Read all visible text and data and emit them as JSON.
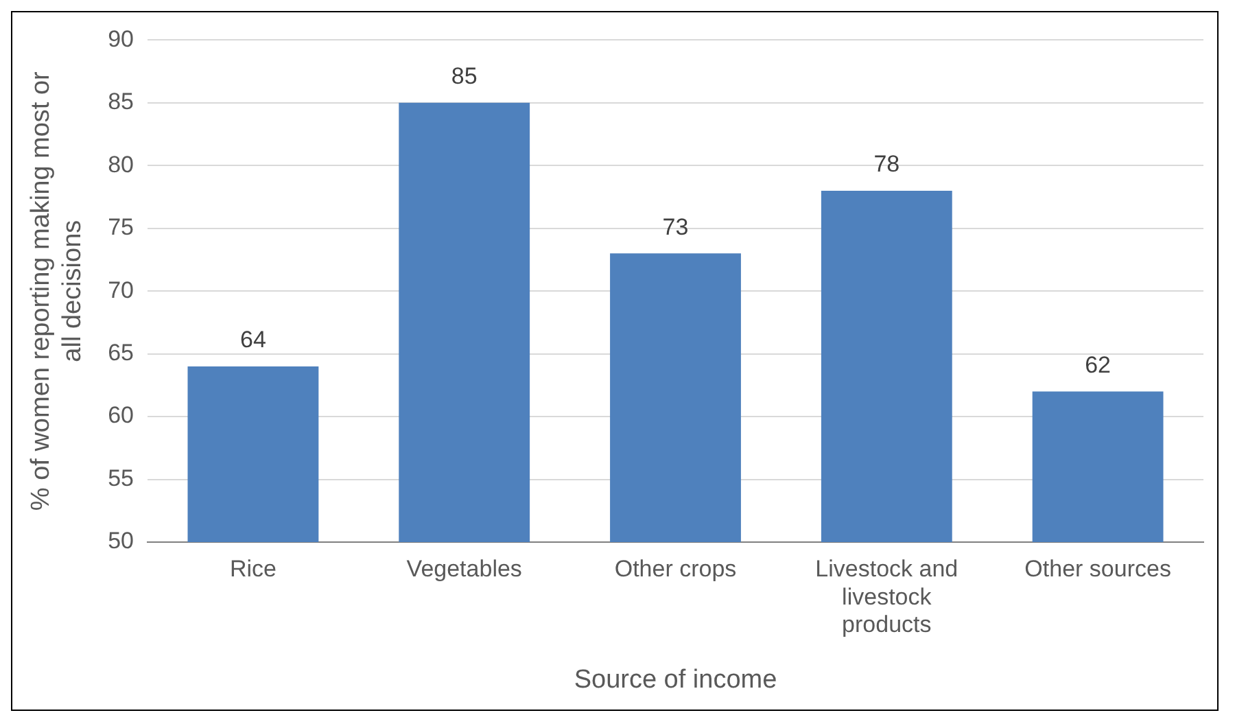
{
  "chart_data": {
    "type": "bar",
    "xlabel": "Source of income",
    "ylabel": "% of women reporting making most or all decisions",
    "categories": [
      "Rice",
      "Vegetables",
      "Other crops",
      "Livestock and livestock products",
      "Other sources"
    ],
    "values": [
      64,
      85,
      73,
      78,
      62
    ],
    "color": "#4f81bd",
    "ylim": [
      50,
      90
    ],
    "yticks": [
      50,
      55,
      60,
      65,
      70,
      75,
      80,
      85,
      90
    ],
    "grid": "y",
    "data_labels": true,
    "legend": false
  }
}
